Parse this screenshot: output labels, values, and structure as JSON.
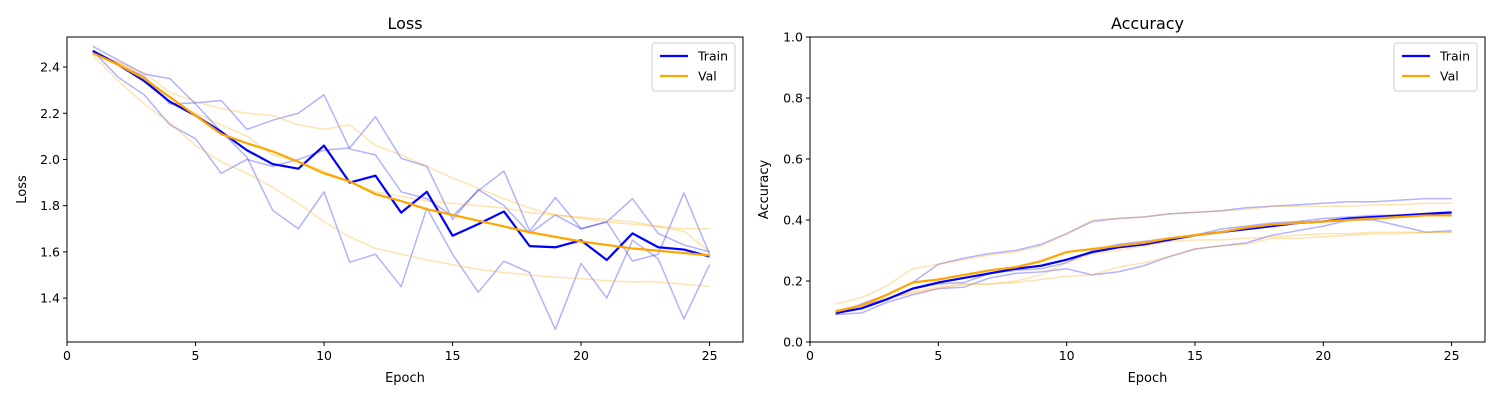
{
  "chart_data": [
    {
      "type": "line",
      "title": "Loss",
      "xlabel": "Epoch",
      "ylabel": "Loss",
      "xlim": [
        0,
        26.3
      ],
      "ylim": [
        1.21,
        2.53
      ],
      "xticks": [
        0,
        5,
        10,
        15,
        20,
        25
      ],
      "yticks": [
        1.4,
        1.6,
        1.8,
        2.0,
        2.2,
        2.4
      ],
      "ytick_decimals": 1,
      "legend_position": "top-right",
      "legend": [
        {
          "label": "Train",
          "color": "#0000ff"
        },
        {
          "label": "Val",
          "color": "#ffa500"
        }
      ],
      "x": [
        1,
        2,
        3,
        4,
        5,
        6,
        7,
        8,
        9,
        10,
        11,
        12,
        13,
        14,
        15,
        16,
        17,
        18,
        19,
        20,
        21,
        22,
        23,
        24,
        25
      ],
      "series": [
        {
          "name": "Train",
          "color": "#0000ff",
          "opacity": 1,
          "width": 2.2,
          "values": [
            2.47,
            2.41,
            2.34,
            2.25,
            2.19,
            2.12,
            2.04,
            1.98,
            1.96,
            2.06,
            1.9,
            1.93,
            1.77,
            1.86,
            1.67,
            1.72,
            1.775,
            1.625,
            1.62,
            1.65,
            1.565,
            1.68,
            1.62,
            1.61,
            1.58
          ]
        },
        {
          "color": "#0000ff",
          "opacity": 0.3,
          "width": 1.5,
          "values": [
            2.49,
            2.43,
            2.37,
            2.35,
            2.24,
            2.12,
            2.01,
            1.78,
            1.7,
            1.86,
            1.555,
            1.59,
            1.45,
            1.79,
            1.59,
            1.425,
            1.56,
            1.51,
            1.265,
            1.55,
            1.4,
            1.65,
            1.57,
            1.31,
            1.545
          ]
        },
        {
          "color": "#0000ff",
          "opacity": 0.3,
          "width": 1.5,
          "values": [
            2.46,
            2.41,
            2.36,
            2.24,
            2.245,
            2.255,
            2.13,
            2.17,
            2.2,
            2.28,
            2.045,
            2.02,
            1.86,
            1.83,
            1.755,
            1.865,
            1.95,
            1.69,
            1.835,
            1.7,
            1.73,
            1.56,
            1.59,
            1.855,
            1.59
          ]
        },
        {
          "color": "#0000ff",
          "opacity": 0.3,
          "width": 1.5,
          "values": [
            2.47,
            2.355,
            2.28,
            2.15,
            2.09,
            1.94,
            2.0,
            1.97,
            2.0,
            2.04,
            2.05,
            2.185,
            2.005,
            1.97,
            1.74,
            1.87,
            1.8,
            1.68,
            1.76,
            1.7,
            1.73,
            1.83,
            1.68,
            1.63,
            1.6
          ]
        },
        {
          "name": "Val",
          "color": "#ffa500",
          "opacity": 1,
          "width": 2.2,
          "values": [
            2.46,
            2.41,
            2.35,
            2.27,
            2.19,
            2.11,
            2.07,
            2.035,
            1.99,
            1.94,
            1.905,
            1.85,
            1.82,
            1.785,
            1.76,
            1.735,
            1.71,
            1.685,
            1.665,
            1.645,
            1.63,
            1.615,
            1.605,
            1.595,
            1.585
          ]
        },
        {
          "color": "#ffa500",
          "opacity": 0.3,
          "width": 1.5,
          "values": [
            2.47,
            2.42,
            2.375,
            2.29,
            2.25,
            2.22,
            2.2,
            2.19,
            2.15,
            2.13,
            2.15,
            2.06,
            2.02,
            1.97,
            1.92,
            1.875,
            1.83,
            1.79,
            1.76,
            1.745,
            1.73,
            1.72,
            1.71,
            1.7,
            1.7
          ]
        },
        {
          "color": "#ffa500",
          "opacity": 0.3,
          "width": 1.5,
          "values": [
            2.45,
            2.34,
            2.24,
            2.16,
            2.06,
            1.99,
            1.94,
            1.88,
            1.81,
            1.73,
            1.665,
            1.615,
            1.59,
            1.565,
            1.545,
            1.525,
            1.51,
            1.5,
            1.49,
            1.485,
            1.475,
            1.47,
            1.47,
            1.46,
            1.45
          ]
        },
        {
          "color": "#ffa500",
          "opacity": 0.3,
          "width": 1.5,
          "values": [
            2.46,
            2.42,
            2.36,
            2.25,
            2.2,
            2.15,
            2.1,
            2.02,
            1.99,
            1.95,
            1.9,
            1.86,
            1.84,
            1.82,
            1.81,
            1.8,
            1.79,
            1.77,
            1.76,
            1.75,
            1.74,
            1.73,
            1.71,
            1.69,
            1.6
          ]
        }
      ]
    },
    {
      "type": "line",
      "title": "Accuracy",
      "xlabel": "Epoch",
      "ylabel": "Accuracy",
      "xlim": [
        0,
        26.3
      ],
      "ylim": [
        0.0,
        1.0
      ],
      "xticks": [
        0,
        5,
        10,
        15,
        20,
        25
      ],
      "yticks": [
        0.0,
        0.2,
        0.4,
        0.6,
        0.8,
        1.0
      ],
      "ytick_decimals": 1,
      "legend_position": "top-right",
      "legend": [
        {
          "label": "Train",
          "color": "#0000ff"
        },
        {
          "label": "Val",
          "color": "#ffa500"
        }
      ],
      "x": [
        1,
        2,
        3,
        4,
        5,
        6,
        7,
        8,
        9,
        10,
        11,
        12,
        13,
        14,
        15,
        16,
        17,
        18,
        19,
        20,
        21,
        22,
        23,
        24,
        25
      ],
      "series": [
        {
          "name": "Train",
          "color": "#0000ff",
          "opacity": 1,
          "width": 2.2,
          "values": [
            0.095,
            0.11,
            0.14,
            0.175,
            0.195,
            0.21,
            0.225,
            0.24,
            0.25,
            0.27,
            0.295,
            0.31,
            0.32,
            0.335,
            0.35,
            0.36,
            0.37,
            0.38,
            0.39,
            0.395,
            0.405,
            0.41,
            0.415,
            0.42,
            0.425
          ]
        },
        {
          "color": "#0000ff",
          "opacity": 0.3,
          "width": 1.5,
          "values": [
            0.1,
            0.12,
            0.14,
            0.175,
            0.19,
            0.195,
            0.225,
            0.235,
            0.24,
            0.26,
            0.3,
            0.32,
            0.33,
            0.34,
            0.35,
            0.37,
            0.38,
            0.39,
            0.395,
            0.405,
            0.41,
            0.415,
            0.415,
            0.42,
            0.42
          ]
        },
        {
          "color": "#0000ff",
          "opacity": 0.3,
          "width": 1.5,
          "values": [
            0.09,
            0.125,
            0.155,
            0.195,
            0.255,
            0.275,
            0.29,
            0.3,
            0.32,
            0.355,
            0.395,
            0.405,
            0.41,
            0.42,
            0.425,
            0.43,
            0.44,
            0.445,
            0.45,
            0.455,
            0.46,
            0.46,
            0.465,
            0.47,
            0.47
          ]
        },
        {
          "color": "#0000ff",
          "opacity": 0.3,
          "width": 1.5,
          "values": [
            0.09,
            0.095,
            0.13,
            0.155,
            0.175,
            0.18,
            0.21,
            0.225,
            0.23,
            0.24,
            0.22,
            0.23,
            0.25,
            0.28,
            0.305,
            0.315,
            0.325,
            0.35,
            0.365,
            0.38,
            0.4,
            0.4,
            0.38,
            0.36,
            0.365
          ]
        },
        {
          "name": "Val",
          "color": "#ffa500",
          "opacity": 1,
          "width": 2.2,
          "values": [
            0.1,
            0.12,
            0.155,
            0.195,
            0.205,
            0.22,
            0.235,
            0.245,
            0.265,
            0.295,
            0.305,
            0.315,
            0.325,
            0.34,
            0.35,
            0.36,
            0.375,
            0.385,
            0.39,
            0.395,
            0.4,
            0.405,
            0.41,
            0.415,
            0.415
          ]
        },
        {
          "color": "#ffa500",
          "opacity": 0.3,
          "width": 1.5,
          "values": [
            0.125,
            0.145,
            0.185,
            0.24,
            0.255,
            0.27,
            0.285,
            0.295,
            0.315,
            0.355,
            0.4,
            0.405,
            0.41,
            0.42,
            0.425,
            0.43,
            0.435,
            0.445,
            0.445,
            0.445,
            0.445,
            0.45,
            0.45,
            0.455,
            0.455
          ]
        },
        {
          "color": "#ffa500",
          "opacity": 0.3,
          "width": 1.5,
          "values": [
            0.1,
            0.12,
            0.145,
            0.16,
            0.175,
            0.19,
            0.19,
            0.195,
            0.205,
            0.215,
            0.22,
            0.245,
            0.26,
            0.28,
            0.305,
            0.315,
            0.32,
            0.34,
            0.34,
            0.345,
            0.35,
            0.355,
            0.355,
            0.36,
            0.36
          ]
        },
        {
          "color": "#ffa500",
          "opacity": 0.3,
          "width": 1.5,
          "values": [
            0.105,
            0.115,
            0.14,
            0.165,
            0.18,
            0.19,
            0.19,
            0.2,
            0.22,
            0.26,
            0.29,
            0.3,
            0.315,
            0.33,
            0.335,
            0.335,
            0.34,
            0.345,
            0.35,
            0.355,
            0.355,
            0.36,
            0.36,
            0.36,
            0.36
          ]
        }
      ]
    }
  ]
}
